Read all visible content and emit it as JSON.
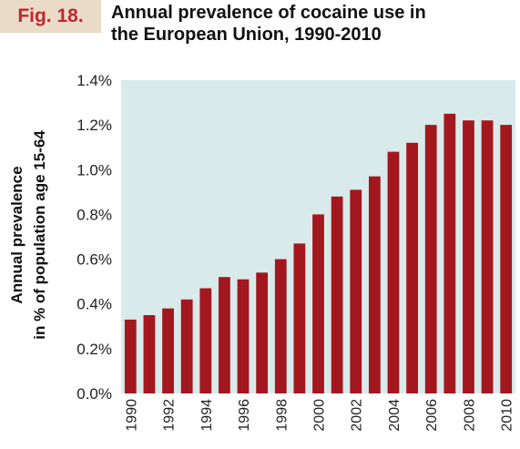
{
  "figure": {
    "label": "Fig. 18.",
    "title_line1": "Annual prevalence of cocaine use in",
    "title_line2": "the European Union, 1990-2010"
  },
  "colors": {
    "bar": "#a3171f",
    "plot_bg": "#d9eaea",
    "label_bg": "#eadbc8",
    "label_text": "#c0272d"
  },
  "chart_data": {
    "type": "bar",
    "ylabel_line1": "Annual prevalence",
    "ylabel_line2": "in % of population age 15-64",
    "ylim": [
      0,
      1.4
    ],
    "yticks": [
      "0.0%",
      "0.2%",
      "0.4%",
      "0.6%",
      "0.8%",
      "1.0%",
      "1.2%",
      "1.4%"
    ],
    "ytick_values": [
      0,
      0.2,
      0.4,
      0.6,
      0.8,
      1.0,
      1.2,
      1.4
    ],
    "categories": [
      "1990",
      "1991",
      "1992",
      "1993",
      "1994",
      "1995",
      "1996",
      "1997",
      "1998",
      "1999",
      "2000",
      "2001",
      "2002",
      "2003",
      "2004",
      "2005",
      "2006",
      "2007",
      "2008",
      "2009",
      "2010"
    ],
    "x_tick_labels": [
      "1990",
      "",
      "1992",
      "",
      "1994",
      "",
      "1996",
      "",
      "1998",
      "",
      "2000",
      "",
      "2002",
      "",
      "2004",
      "",
      "2006",
      "",
      "2008",
      "",
      "2010"
    ],
    "values": [
      0.33,
      0.35,
      0.38,
      0.42,
      0.47,
      0.52,
      0.51,
      0.54,
      0.6,
      0.67,
      0.8,
      0.88,
      0.91,
      0.97,
      1.08,
      1.12,
      1.2,
      1.25,
      1.22,
      1.22,
      1.2
    ],
    "grid": false,
    "legend": "none"
  }
}
